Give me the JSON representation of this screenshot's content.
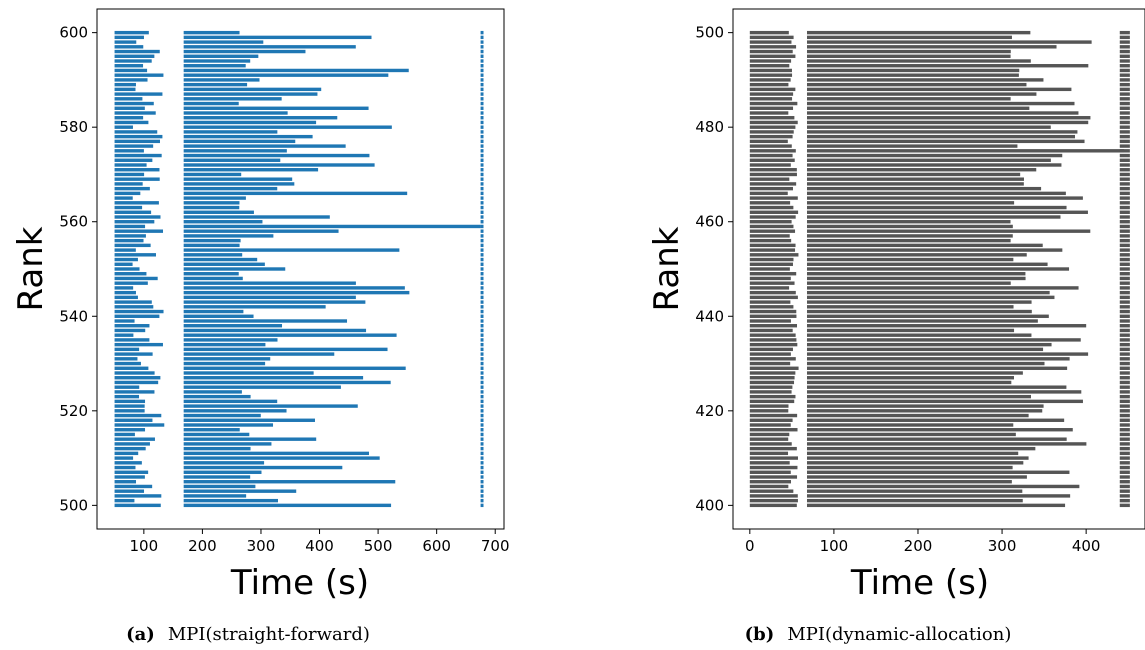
{
  "chart_data": [
    {
      "type": "bar",
      "orientation": "horizontal-gantt",
      "xlabel": "Time (s)",
      "ylabel": "Rank",
      "color": "#1f77b4",
      "xlim": [
        20,
        715
      ],
      "ylim": [
        495,
        605
      ],
      "xticks": [
        100,
        200,
        300,
        400,
        500,
        600,
        700
      ],
      "yticks": [
        500,
        520,
        540,
        560,
        580,
        600
      ],
      "rank_start": 500,
      "rank_end": 600,
      "caption_tag": "(a)",
      "caption_text": "MPI(straight-forward)",
      "segments": {
        "first": {
          "start": 50,
          "end_min": 80,
          "end_max": 135
        },
        "second": {
          "start": 168,
          "end_min": 262,
          "end_max": 675,
          "long_rank": 559
        },
        "third": {
          "start": 675,
          "end": 680
        }
      }
    },
    {
      "type": "bar",
      "orientation": "horizontal-gantt",
      "xlabel": "Time (s)",
      "ylabel": "Rank",
      "color": "#555555",
      "xlim": [
        -20,
        470
      ],
      "ylim": [
        395,
        505
      ],
      "xticks": [
        0,
        100,
        200,
        300,
        400
      ],
      "yticks": [
        400,
        420,
        440,
        460,
        480,
        500
      ],
      "rank_start": 400,
      "rank_end": 500,
      "caption_tag": "(b)",
      "caption_text": "MPI(dynamic-allocation)",
      "segments": {
        "first": {
          "start": 0,
          "end_min": 45,
          "end_max": 58
        },
        "second": {
          "start": 68,
          "end_min": 310,
          "end_max": 445,
          "long_rank": 475
        },
        "third": {
          "start": 440,
          "end": 452
        }
      }
    }
  ]
}
